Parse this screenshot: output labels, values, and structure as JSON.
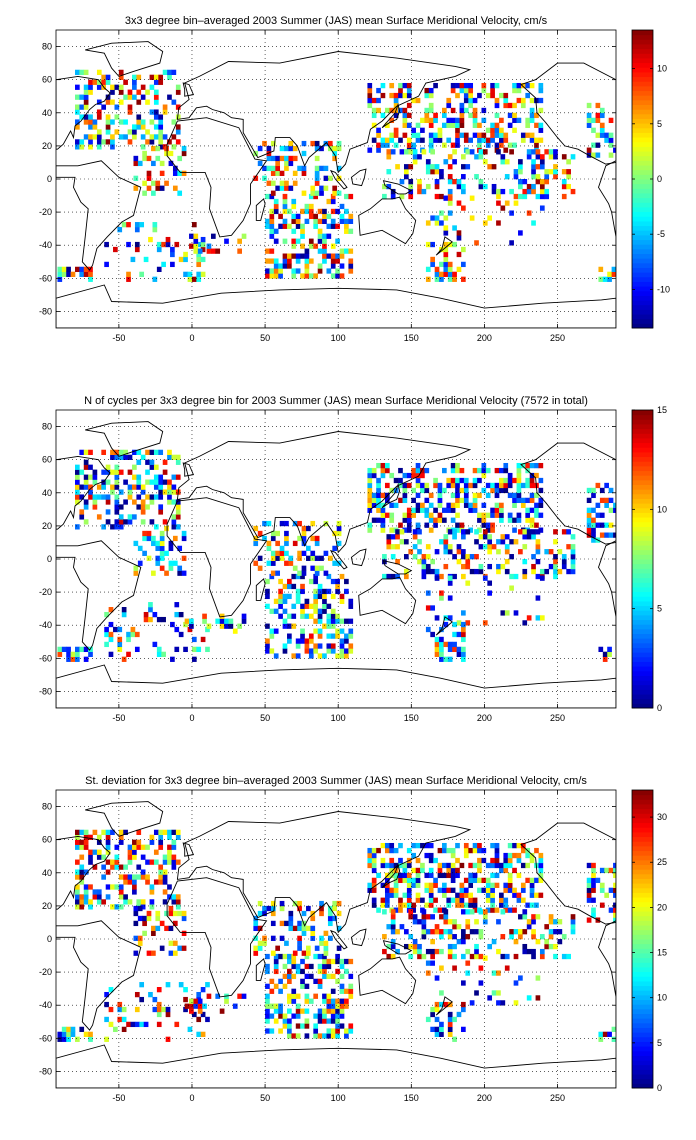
{
  "chart_data": [
    {
      "type": "heatmap",
      "title": "3x3 degree bin–averaged 2003 Summer (JAS) mean Surface Meridional Velocity, cm/s",
      "xlim": [
        -93,
        290
      ],
      "ylim": [
        -90,
        90
      ],
      "xticks": [
        -50,
        0,
        50,
        100,
        150,
        200,
        250
      ],
      "yticks": [
        80,
        60,
        40,
        20,
        0,
        -20,
        -40,
        -60,
        -80
      ],
      "grid": true,
      "colorbar": {
        "range": [
          -13.5,
          13.5
        ],
        "ticks": [
          10,
          5,
          0,
          -5,
          -10
        ]
      },
      "seed": 11
    },
    {
      "type": "heatmap",
      "title": "N of cycles per 3x3 degree bin for 2003 Summer (JAS) mean Surface Meridional Velocity (7572 in total)",
      "xlim": [
        -93,
        290
      ],
      "ylim": [
        -90,
        90
      ],
      "xticks": [
        -50,
        0,
        50,
        100,
        150,
        200,
        250
      ],
      "yticks": [
        80,
        60,
        40,
        20,
        0,
        -20,
        -40,
        -60,
        -80
      ],
      "grid": true,
      "colorbar": {
        "range": [
          0,
          15
        ],
        "ticks": [
          15,
          10,
          5,
          0
        ]
      },
      "seed": 23
    },
    {
      "type": "heatmap",
      "title": "St. deviation for 3x3 degree bin–averaged 2003 Summer (JAS) mean Surface Meridional Velocity, cm/s",
      "xlim": [
        -93,
        290
      ],
      "ylim": [
        -90,
        90
      ],
      "xticks": [
        -50,
        0,
        50,
        100,
        150,
        200,
        250
      ],
      "yticks": [
        80,
        60,
        40,
        20,
        0,
        -20,
        -40,
        -60,
        -80
      ],
      "grid": true,
      "colorbar": {
        "range": [
          0,
          33
        ],
        "ticks": [
          30,
          25,
          20,
          15,
          10,
          5,
          0
        ]
      },
      "seed": 37
    }
  ]
}
